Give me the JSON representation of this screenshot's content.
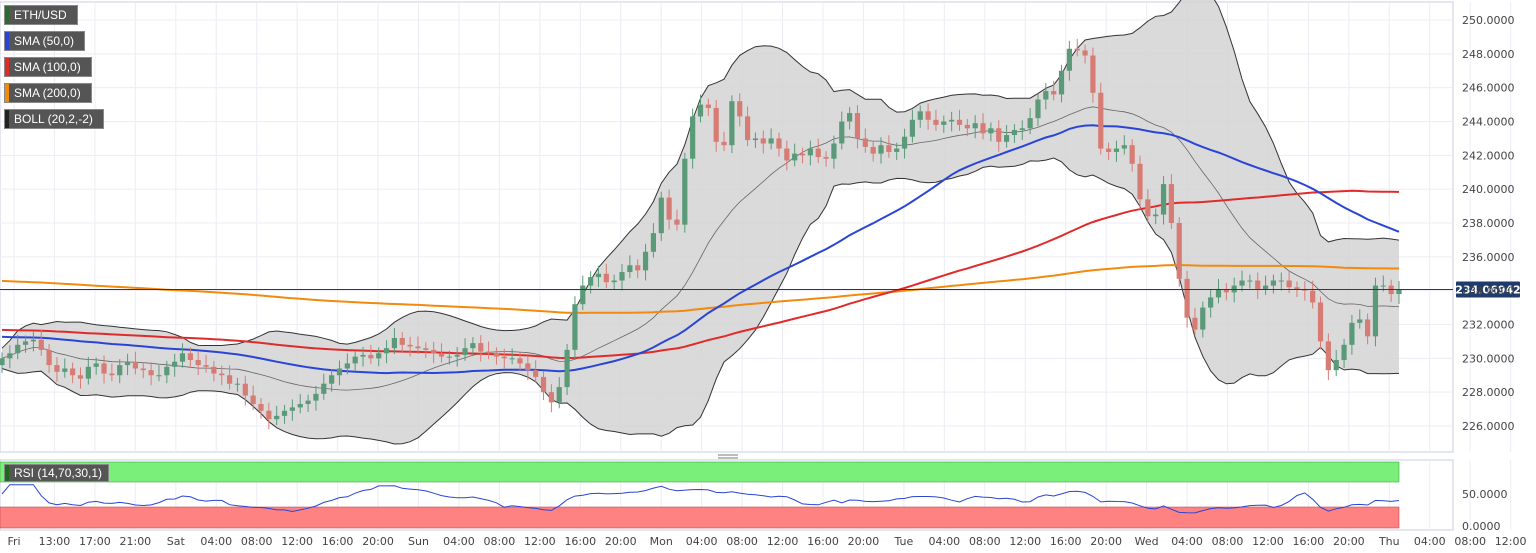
{
  "chart_data": [
    {
      "type": "candlestick",
      "symbol": "ETH/USD",
      "indicators": [
        {
          "name": "SMA (50,0)",
          "color": "#2a45d6"
        },
        {
          "name": "SMA (100,0)",
          "color": "#e02b2b"
        },
        {
          "name": "SMA (200,0)",
          "color": "#f28a0e"
        },
        {
          "name": "BOLL (20,2,-2)",
          "color": "#222222"
        }
      ],
      "ylim": [
        225.5,
        251.0
      ],
      "yticks": [
        "250.0000",
        "248.0000",
        "246.0000",
        "244.0000",
        "242.0000",
        "240.0000",
        "238.0000",
        "236.0000",
        "234.0000",
        "232.0000",
        "230.0000",
        "228.0000",
        "226.0000"
      ],
      "ytick_values": [
        250,
        248,
        246,
        244,
        242,
        240,
        238,
        236,
        234,
        232,
        230,
        228,
        226
      ],
      "last_price": "234.06942",
      "last_price_value": 234.06942,
      "xticks": [
        "Fri",
        "13:00",
        "17:00",
        "21:00",
        "Sat",
        "04:00",
        "08:00",
        "12:00",
        "16:00",
        "20:00",
        "Sun",
        "04:00",
        "08:00",
        "12:00",
        "16:00",
        "20:00",
        "Mon",
        "04:00",
        "08:00",
        "12:00",
        "16:00",
        "20:00",
        "Tue",
        "04:00",
        "08:00",
        "12:00",
        "16:00",
        "20:00",
        "Wed",
        "04:00",
        "08:00",
        "12:00",
        "16:00",
        "20:00",
        "Thu",
        "04:00",
        "08:00",
        "12:00"
      ],
      "closes": [
        230.0,
        230.3,
        230.8,
        231.0,
        231.1,
        230.5,
        229.6,
        229.2,
        229.4,
        229.0,
        228.8,
        229.5,
        229.7,
        229.1,
        229.0,
        229.6,
        229.8,
        229.4,
        229.3,
        229.0,
        229.0,
        229.5,
        229.8,
        230.3,
        229.9,
        229.6,
        229.5,
        229.1,
        229.0,
        228.5,
        228.5,
        227.8,
        227.3,
        226.9,
        226.4,
        226.6,
        226.9,
        227.1,
        227.3,
        227.5,
        227.9,
        228.5,
        229.0,
        229.4,
        229.7,
        230.1,
        230.2,
        230.0,
        230.3,
        230.6,
        231.2,
        230.8,
        230.7,
        230.6,
        230.5,
        230.3,
        230.1,
        230.1,
        230.2,
        230.6,
        230.9,
        230.4,
        230.3,
        230.1,
        230.0,
        230.0,
        229.7,
        229.3,
        228.9,
        228.0,
        227.4,
        228.3,
        230.5,
        233.2,
        234.3,
        234.8,
        235.0,
        234.5,
        234.6,
        235.1,
        235.5,
        235.2,
        236.3,
        237.4,
        239.5,
        238.2,
        237.9,
        241.8,
        244.3,
        245.0,
        244.8,
        242.8,
        242.6,
        245.2,
        244.3,
        242.9,
        243.0,
        242.7,
        243.0,
        242.4,
        241.7,
        242.1,
        242.0,
        242.4,
        241.9,
        241.8,
        242.7,
        244.0,
        244.5,
        243.0,
        242.5,
        242.1,
        242.6,
        242.2,
        242.4,
        243.1,
        244.1,
        244.6,
        244.1,
        243.8,
        244.0,
        244.1,
        243.8,
        243.6,
        243.9,
        243.3,
        243.6,
        242.8,
        243.2,
        243.5,
        243.6,
        244.2,
        245.3,
        245.8,
        245.6,
        247.0,
        248.3,
        248.2,
        247.9,
        245.7,
        242.4,
        242.2,
        242.4,
        242.6,
        241.5,
        239.4,
        238.4,
        238.5,
        240.3,
        238.0,
        234.7,
        232.4,
        231.7,
        233.0,
        233.6,
        234.1,
        233.9,
        234.3,
        234.6,
        234.6,
        234.1,
        234.3,
        234.6,
        234.6,
        234.2,
        234.1,
        234.0,
        233.3,
        231.0,
        229.3,
        229.9,
        230.8,
        232.1,
        232.3,
        231.3,
        234.3,
        234.3,
        233.8,
        234.1
      ],
      "rsi_label": "RSI (14,70,30,1)",
      "rsi_yticks": [
        "50.0000",
        "0.0000"
      ],
      "rsi_ytick_values": [
        50,
        0
      ],
      "rsi_levels": {
        "overbought": 70,
        "oversold": 30
      }
    }
  ]
}
